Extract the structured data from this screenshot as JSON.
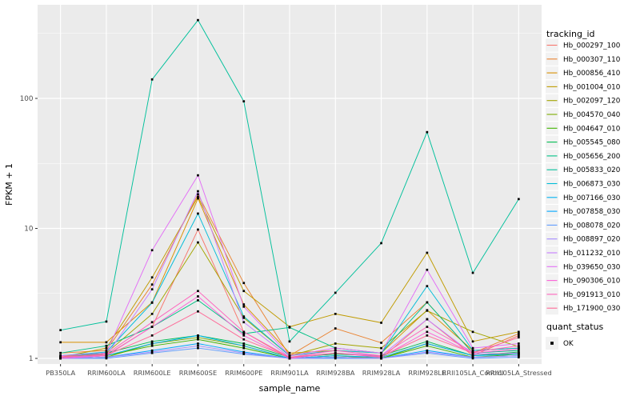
{
  "chart_data": {
    "type": "line",
    "title": "",
    "xlabel": "sample_name",
    "ylabel": "FPKM + 1",
    "yscale": "log10",
    "ylim": [
      0.9,
      525
    ],
    "yticks": [
      1,
      10,
      100
    ],
    "ytick_labels": [
      "1",
      "10",
      "100"
    ],
    "yminor": [
      3.1623,
      31.623,
      316.23
    ],
    "grid": true,
    "panel_bg": "#EBEBEB",
    "grid_color": "#FFFFFF",
    "axis_text_color": "#4D4D4D",
    "axis_title_color": "#000000",
    "marker": {
      "shape": "square",
      "color": "#000000",
      "size": 2.7
    },
    "legend_position": "right",
    "categories": [
      "PB350LA",
      "RRIM600LA",
      "RRIM600LE",
      "RRIM600SE",
      "RRIM600PE",
      "RRIM901LA",
      "RRIM928BA",
      "RRIM928LA",
      "RRIM928LE",
      "RRII105LA_Control",
      "RRII105LA_Stressed"
    ],
    "legend_title": "tracking_id",
    "series": [
      {
        "name": "Hb_000297_100",
        "color": "#F8766D",
        "values": [
          1.05,
          1.06,
          1.75,
          9.8,
          1.6,
          1.0,
          1.05,
          1.0,
          2.0,
          1.05,
          1.5
        ]
      },
      {
        "name": "Hb_000307_110",
        "color": "#EA8331",
        "values": [
          1.1,
          1.15,
          3.7,
          18.3,
          3.8,
          1.05,
          1.7,
          1.32,
          2.7,
          1.1,
          1.55
        ]
      },
      {
        "name": "Hb_000856_410",
        "color": "#D89000",
        "values": [
          1.33,
          1.33,
          2.7,
          17.0,
          2.6,
          1.1,
          1.15,
          1.1,
          2.35,
          1.15,
          1.2
        ]
      },
      {
        "name": "Hb_001004_010",
        "color": "#C09B00",
        "values": [
          1.02,
          1.2,
          4.2,
          17.5,
          3.3,
          1.75,
          2.2,
          1.88,
          6.5,
          1.35,
          1.6
        ]
      },
      {
        "name": "Hb_002097_120",
        "color": "#A3A500",
        "values": [
          1.0,
          1.1,
          2.2,
          7.8,
          2.05,
          1.05,
          1.3,
          1.2,
          2.33,
          1.6,
          1.23
        ]
      },
      {
        "name": "Hb_004570_040",
        "color": "#7CAE00",
        "values": [
          1.0,
          1.02,
          1.3,
          1.45,
          1.25,
          1.0,
          1.05,
          1.0,
          1.3,
          1.05,
          1.1
        ]
      },
      {
        "name": "Hb_004647_010",
        "color": "#42B500",
        "values": [
          1.0,
          1.05,
          1.25,
          1.4,
          1.2,
          1.0,
          1.02,
          1.0,
          1.25,
          1.02,
          1.08
        ]
      },
      {
        "name": "Hb_005545_080",
        "color": "#00BC51",
        "values": [
          1.02,
          1.1,
          1.35,
          1.5,
          1.3,
          1.02,
          1.08,
          1.05,
          1.35,
          1.05,
          1.12
        ]
      },
      {
        "name": "Hb_005656_200",
        "color": "#00C085",
        "values": [
          1.1,
          1.25,
          1.75,
          2.8,
          1.55,
          1.73,
          1.2,
          1.1,
          2.7,
          1.1,
          1.15
        ]
      },
      {
        "name": "Hb_005833_020",
        "color": "#00C09B",
        "values": [
          1.65,
          1.92,
          140,
          400,
          95,
          1.35,
          3.2,
          7.7,
          55,
          4.55,
          16.8
        ]
      },
      {
        "name": "Hb_006873_030",
        "color": "#00BCD8",
        "values": [
          1.05,
          1.12,
          2.68,
          13.0,
          2.1,
          1.05,
          1.15,
          1.1,
          3.6,
          1.15,
          1.2
        ]
      },
      {
        "name": "Hb_007166_030",
        "color": "#00B3F2",
        "values": [
          1.0,
          1.05,
          1.3,
          1.5,
          1.25,
          1.0,
          1.05,
          1.02,
          1.3,
          1.05,
          1.08
        ]
      },
      {
        "name": "Hb_007858_030",
        "color": "#00A7FF",
        "values": [
          1.0,
          1.02,
          1.15,
          1.3,
          1.12,
          1.0,
          1.02,
          1.0,
          1.15,
          1.02,
          1.05
        ]
      },
      {
        "name": "Hb_008078_020",
        "color": "#619CFF",
        "values": [
          1.0,
          1.0,
          1.1,
          1.2,
          1.08,
          1.0,
          1.0,
          1.0,
          1.1,
          1.0,
          1.02
        ]
      },
      {
        "name": "Hb_008897_020",
        "color": "#A58AFF",
        "values": [
          1.0,
          1.02,
          1.12,
          1.25,
          1.1,
          1.0,
          1.02,
          1.0,
          1.12,
          1.02,
          1.05
        ]
      },
      {
        "name": "Hb_011232_010",
        "color": "#C77CFF",
        "values": [
          1.02,
          1.05,
          3.4,
          19.3,
          1.9,
          1.02,
          1.1,
          1.05,
          2.0,
          1.08,
          1.1
        ]
      },
      {
        "name": "Hb_039650_030",
        "color": "#E36EF6",
        "values": [
          1.05,
          1.1,
          6.8,
          25.6,
          2.5,
          1.05,
          1.2,
          1.1,
          4.8,
          1.2,
          1.3
        ]
      },
      {
        "name": "Hb_090306_010",
        "color": "#FB61D7",
        "values": [
          1.0,
          1.05,
          1.75,
          3.0,
          1.5,
          1.0,
          1.1,
          1.02,
          1.6,
          1.1,
          1.18
        ]
      },
      {
        "name": "Hb_091913_010",
        "color": "#FF62BD",
        "values": [
          1.02,
          1.08,
          1.9,
          3.3,
          1.6,
          1.02,
          1.15,
          1.05,
          1.75,
          1.12,
          1.25
        ]
      },
      {
        "name": "Hb_171900_030",
        "color": "#FF6A98",
        "values": [
          1.03,
          1.06,
          1.5,
          2.3,
          1.4,
          1.02,
          1.1,
          1.03,
          1.5,
          1.1,
          1.45
        ]
      }
    ],
    "legend2": {
      "title": "quant_status",
      "items": [
        {
          "label": "OK",
          "marker": "black-square"
        }
      ]
    },
    "legend_key_bg": "#F2F2F2"
  }
}
